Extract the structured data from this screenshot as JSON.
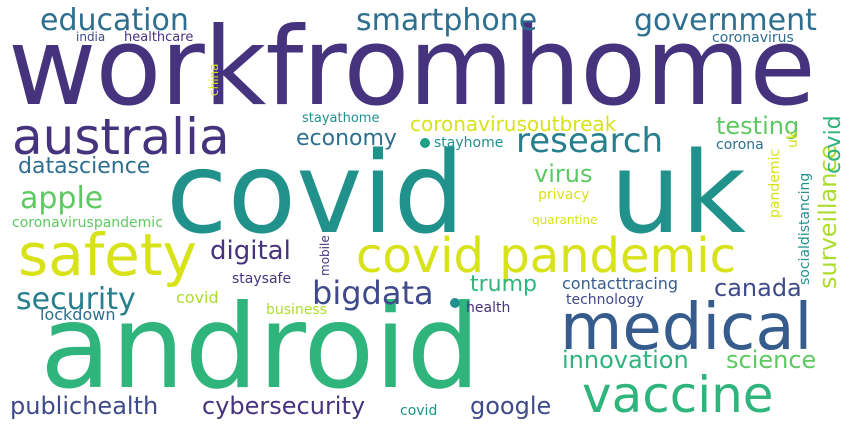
{
  "palette": {
    "deep_purple": "#46337e",
    "indigo": "#3e4a89",
    "blue": "#365c8d",
    "steel_blue": "#2e6e8e",
    "teal": "#277f8e",
    "teal_green": "#21918c",
    "green": "#1fa188",
    "sea_green": "#2fb47c",
    "lime_green": "#5ec962",
    "yellow_green": "#addc30",
    "yellow": "#d8e219",
    "dark_purple": "#440154"
  },
  "words": [
    {
      "text": "workfromhome",
      "color": "#46337e"
    },
    {
      "text": "covid",
      "color": "#21918c"
    },
    {
      "text": "uk",
      "color": "#21918c"
    },
    {
      "text": "android",
      "color": "#2fb47c"
    },
    {
      "text": "medical",
      "color": "#365c8d"
    },
    {
      "text": "australia",
      "color": "#46337e"
    },
    {
      "text": "covid pandemic",
      "color": "#d8e219"
    },
    {
      "text": "safety",
      "color": "#d8e219"
    },
    {
      "text": "vaccine",
      "color": "#2fb47c"
    },
    {
      "text": "education",
      "color": "#2e6e8e"
    },
    {
      "text": "smartphone",
      "color": "#2e6e8e"
    },
    {
      "text": "government",
      "color": "#2e6e8e"
    },
    {
      "text": "research",
      "color": "#277f8e"
    },
    {
      "text": "apple",
      "color": "#5ec962"
    },
    {
      "text": "security",
      "color": "#277f8e"
    },
    {
      "text": "bigdata",
      "color": "#3e4a89"
    },
    {
      "text": "digital",
      "color": "#46337e"
    },
    {
      "text": "economy",
      "color": "#2e6e8e"
    },
    {
      "text": "testing",
      "color": "#5ec962"
    },
    {
      "text": "coronavirusoutbreak",
      "color": "#d8e219"
    },
    {
      "text": "datascience",
      "color": "#2e6e8e"
    },
    {
      "text": "virus",
      "color": "#5ec962"
    },
    {
      "text": "surveillance",
      "color": "#addc30"
    },
    {
      "text": "canada",
      "color": "#3e4a89"
    },
    {
      "text": "trump",
      "color": "#2fb47c"
    },
    {
      "text": "innovation",
      "color": "#2fb47c"
    },
    {
      "text": "science",
      "color": "#5ec962"
    },
    {
      "text": "publichealth",
      "color": "#3e4a89"
    },
    {
      "text": "cybersecurity",
      "color": "#46337e"
    },
    {
      "text": "google",
      "color": "#3e4a89"
    },
    {
      "text": "covid",
      "color": "#addc30"
    },
    {
      "text": "lockdown",
      "color": "#2e6e8e"
    },
    {
      "text": "staysafe",
      "color": "#46337e"
    },
    {
      "text": "business",
      "color": "#addc30"
    },
    {
      "text": "health",
      "color": "#46337e"
    },
    {
      "text": "technology",
      "color": "#3e4a89"
    },
    {
      "text": "contacttracing",
      "color": "#365c8d"
    },
    {
      "text": "covid",
      "color": "#21918c"
    },
    {
      "text": "mobile",
      "color": "#46337e"
    },
    {
      "text": "privacy",
      "color": "#d8e219"
    },
    {
      "text": "quarantine",
      "color": "#d8e219"
    },
    {
      "text": "pandemic",
      "color": "#d8e219"
    },
    {
      "text": "socialdistancing",
      "color": "#21918c"
    },
    {
      "text": "coronavirus",
      "color": "#2e6e8e"
    },
    {
      "text": "healthcare",
      "color": "#46337e"
    },
    {
      "text": "india",
      "color": "#3e4a89"
    },
    {
      "text": "china",
      "color": "#d8e219"
    },
    {
      "text": "stayathome",
      "color": "#21918c"
    },
    {
      "text": "stayhome",
      "color": "#21918c"
    },
    {
      "text": "corona",
      "color": "#2e6e8e"
    },
    {
      "text": "coronaviruspandemic",
      "color": "#5ec962"
    },
    {
      "text": "covid",
      "color": "#2fb47c"
    },
    {
      "text": "uk",
      "color": "#d8e219"
    }
  ]
}
